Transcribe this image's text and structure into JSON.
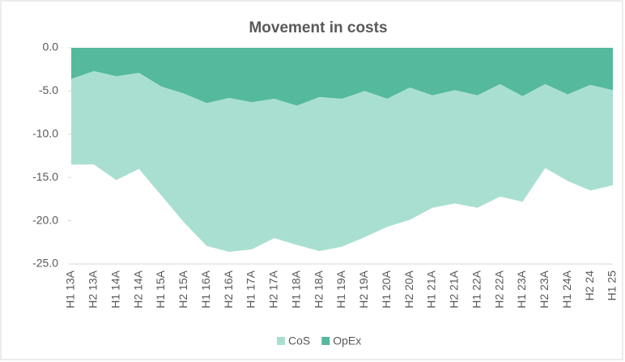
{
  "chart_data": {
    "type": "stacked_area",
    "title": "Movement in costs",
    "categories": [
      "H1 13A",
      "H2 13A",
      "H1 14A",
      "H2 14A",
      "H1 15A",
      "H2 15A",
      "H1 16A",
      "H2 16A",
      "H1 17A",
      "H2 17A",
      "H1 18A",
      "H2 18A",
      "H1 19A",
      "H2 19A",
      "H1 20A",
      "H2 20A",
      "H1 21A",
      "H2 21A",
      "H1 22A",
      "H2 22A",
      "H1 23A",
      "H2 23A",
      "H1 24A",
      "H2 24",
      "H1 25"
    ],
    "series": [
      {
        "name": "CoS",
        "color": "#a9dfd1",
        "values": [
          -9.9,
          -10.8,
          -12.0,
          -11.1,
          -12.6,
          -14.9,
          -16.5,
          -17.8,
          -17.0,
          -16.1,
          -16.1,
          -17.8,
          -17.1,
          -16.9,
          -14.8,
          -15.3,
          -13.0,
          -13.1,
          -13.0,
          -13.0,
          -12.2,
          -9.7,
          -10.0,
          -12.2,
          -11.0
        ]
      },
      {
        "name": "OpEx",
        "color": "#54b99d",
        "values": [
          -3.6,
          -2.7,
          -3.3,
          -2.9,
          -4.5,
          -5.3,
          -6.4,
          -5.8,
          -6.3,
          -5.9,
          -6.7,
          -5.7,
          -5.9,
          -5.0,
          -5.9,
          -4.6,
          -5.5,
          -4.9,
          -5.5,
          -4.2,
          -5.6,
          -4.2,
          -5.4,
          -4.3,
          -4.9
        ]
      }
    ],
    "ylim": [
      -25,
      0
    ],
    "yticks": [
      {
        "value": 0,
        "label": "0.0"
      },
      {
        "value": -5,
        "label": "-5.0"
      },
      {
        "value": -10,
        "label": "-10.0"
      },
      {
        "value": -15,
        "label": "-15.0"
      },
      {
        "value": -20,
        "label": "-20.0"
      },
      {
        "value": -25,
        "label": "-25.0"
      }
    ],
    "legend": "bottom"
  }
}
